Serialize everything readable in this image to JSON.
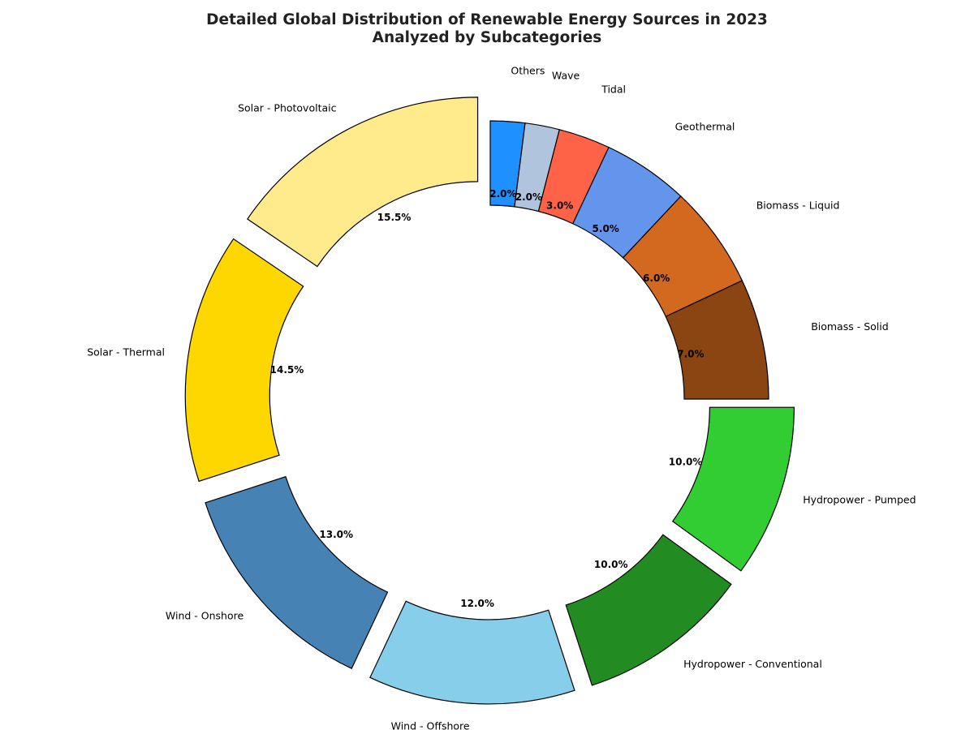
{
  "chart_data": {
    "type": "pie",
    "style": "donut",
    "title_lines": [
      "Detailed Global Distribution of Renewable Energy Sources in 2023",
      "Analyzed by Subcategories"
    ],
    "start_angle_deg": 90,
    "direction": "clockwise",
    "slices": [
      {
        "label": "Others",
        "value": 2.0,
        "pct_label": "2.0%",
        "color": "#1e90ff",
        "exploded": false
      },
      {
        "label": "Wave",
        "value": 2.0,
        "pct_label": "2.0%",
        "color": "#b0c4de",
        "exploded": false
      },
      {
        "label": "Tidal",
        "value": 3.0,
        "pct_label": "3.0%",
        "color": "#ff6347",
        "exploded": false
      },
      {
        "label": "Geothermal",
        "value": 5.0,
        "pct_label": "5.0%",
        "color": "#6495ed",
        "exploded": false
      },
      {
        "label": "Biomass - Liquid",
        "value": 6.0,
        "pct_label": "6.0%",
        "color": "#d2691e",
        "exploded": false
      },
      {
        "label": "Biomass - Solid",
        "value": 7.0,
        "pct_label": "7.0%",
        "color": "#8b4513",
        "exploded": false
      },
      {
        "label": "Hydropower - Pumped",
        "value": 10.0,
        "pct_label": "10.0%",
        "color": "#32cd32",
        "exploded": true
      },
      {
        "label": "Hydropower - Conventional",
        "value": 10.0,
        "pct_label": "10.0%",
        "color": "#228b22",
        "exploded": true
      },
      {
        "label": "Wind - Offshore",
        "value": 12.0,
        "pct_label": "12.0%",
        "color": "#87ceeb",
        "exploded": true
      },
      {
        "label": "Wind - Onshore",
        "value": 13.0,
        "pct_label": "13.0%",
        "color": "#4682b4",
        "exploded": true
      },
      {
        "label": "Solar - Thermal",
        "value": 14.5,
        "pct_label": "14.5%",
        "color": "#ffd700",
        "exploded": true
      },
      {
        "label": "Solar - Photovoltaic",
        "value": 15.5,
        "pct_label": "15.5%",
        "color": "#ffeb8c",
        "exploded": true
      }
    ]
  }
}
